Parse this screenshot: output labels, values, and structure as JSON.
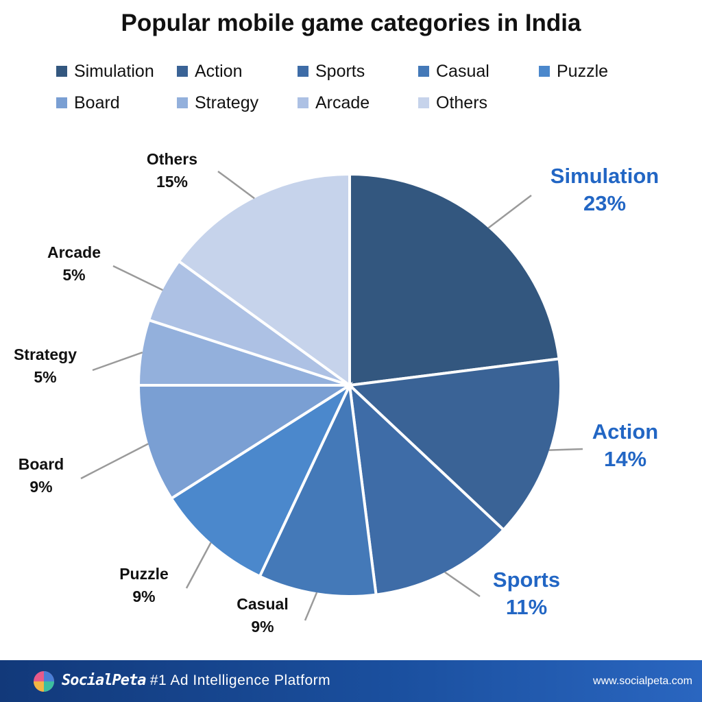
{
  "chart_data": {
    "type": "pie",
    "title": "Popular mobile game categories in India",
    "legend_position": "top",
    "categories": [
      "Simulation",
      "Action",
      "Sports",
      "Casual",
      "Puzzle",
      "Board",
      "Strategy",
      "Arcade",
      "Others"
    ],
    "values": [
      23,
      14,
      11,
      9,
      9,
      9,
      5,
      5,
      15
    ],
    "value_labels": [
      "23%",
      "14%",
      "11%",
      "9%",
      "9%",
      "9%",
      "5%",
      "5%",
      "15%"
    ],
    "colors": [
      "#33577f",
      "#3a6396",
      "#3e6ca7",
      "#4479b8",
      "#4b88cc",
      "#7a9fd3",
      "#93b0dc",
      "#adc1e4",
      "#c6d3eb"
    ],
    "highlight_label_color": "#2266c4",
    "default_label_color": "#111111"
  },
  "footer": {
    "brand": "SocialPeta",
    "tagline": "- #1 Ad Intelligence Platform",
    "website": "www.socialpeta.com"
  }
}
